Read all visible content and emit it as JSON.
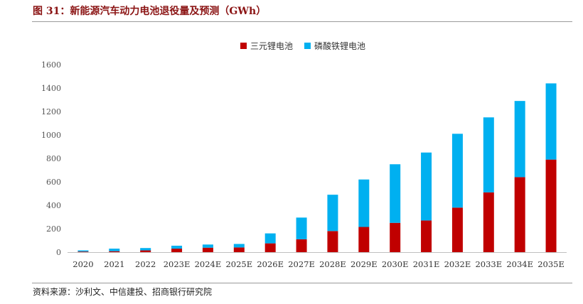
{
  "header": {
    "title": "图 31：新能源汽车动力电池退役量及预测（GWh）"
  },
  "footer": {
    "source": "资料来源：沙利文、中信建投、招商银行研究院"
  },
  "colors": {
    "ncm": "#c00000",
    "lfp": "#00b0f0",
    "title": "#8b1414"
  },
  "chart_data": {
    "type": "bar",
    "stacked": true,
    "title": "图 31：新能源汽车动力电池退役量及预测（GWh）",
    "categories": [
      "2020",
      "2021",
      "2022",
      "2023E",
      "2024E",
      "2025E",
      "2026E",
      "2027E",
      "2028E",
      "2029E",
      "2030E",
      "2031E",
      "2032E",
      "2033E",
      "2034E",
      "2035E"
    ],
    "series": [
      {
        "name": "三元锂电池",
        "values": [
          5,
          8,
          15,
          30,
          38,
          40,
          75,
          110,
          180,
          215,
          250,
          270,
          380,
          510,
          640,
          790
        ]
      },
      {
        "name": "磷酸铁锂电池",
        "values": [
          10,
          22,
          20,
          25,
          27,
          30,
          85,
          185,
          310,
          405,
          500,
          580,
          630,
          640,
          650,
          650
        ]
      }
    ],
    "ylim": [
      0,
      1600
    ],
    "yticks": [
      0,
      200,
      400,
      600,
      800,
      1000,
      1200,
      1400,
      1600
    ],
    "grid": false,
    "legend": "top-center"
  }
}
